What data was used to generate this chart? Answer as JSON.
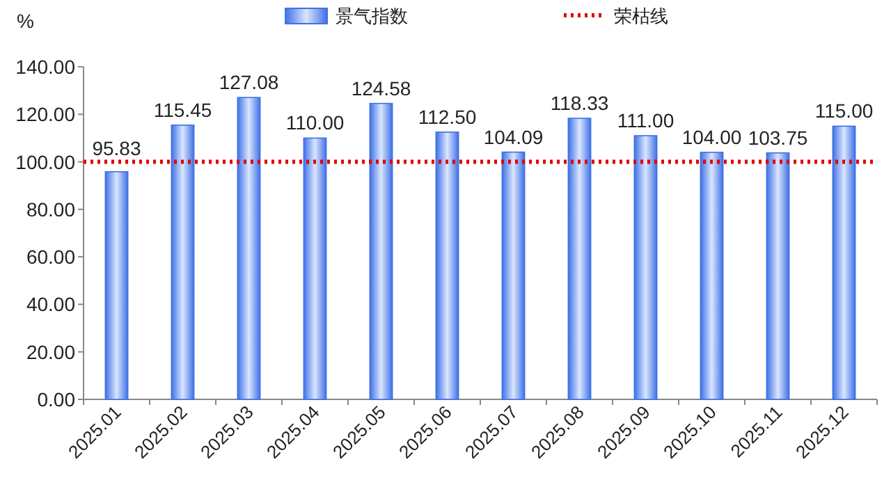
{
  "chart_data": {
    "type": "bar",
    "ylabel": "%",
    "legend": "top",
    "categories": [
      "2025.01",
      "2025.02",
      "2025.03",
      "2025.04",
      "2025.05",
      "2025.06",
      "2025.07",
      "2025.08",
      "2025.09",
      "2025.10",
      "2025.11",
      "2025.12"
    ],
    "series": [
      {
        "name": "景气指数",
        "color": "#3f72e6",
        "values": [
          95.83,
          115.45,
          127.08,
          110.0,
          124.58,
          112.5,
          104.09,
          118.33,
          111.0,
          104.0,
          103.75,
          115.0
        ],
        "value_labels": [
          "95.83",
          "115.45",
          "127.08",
          "110.00",
          "124.58",
          "112.50",
          "104.09",
          "118.33",
          "111.00",
          "104.00",
          "103.75",
          "115.00"
        ]
      }
    ],
    "ylim": [
      0,
      140
    ],
    "yticks": [
      {
        "value": 0,
        "label": "0.00"
      },
      {
        "value": 20,
        "label": "20.00"
      },
      {
        "value": 40,
        "label": "40.00"
      },
      {
        "value": 60,
        "label": "60.00"
      },
      {
        "value": 80,
        "label": "80.00"
      },
      {
        "value": 100,
        "label": "100.00"
      },
      {
        "value": 120,
        "label": "120.00"
      },
      {
        "value": 140,
        "label": "140.00"
      }
    ],
    "ref_lines": [
      {
        "axis": "y",
        "value": 100,
        "label": "荣枯线",
        "color": "#e00000",
        "line_style": "dotted"
      }
    ]
  }
}
